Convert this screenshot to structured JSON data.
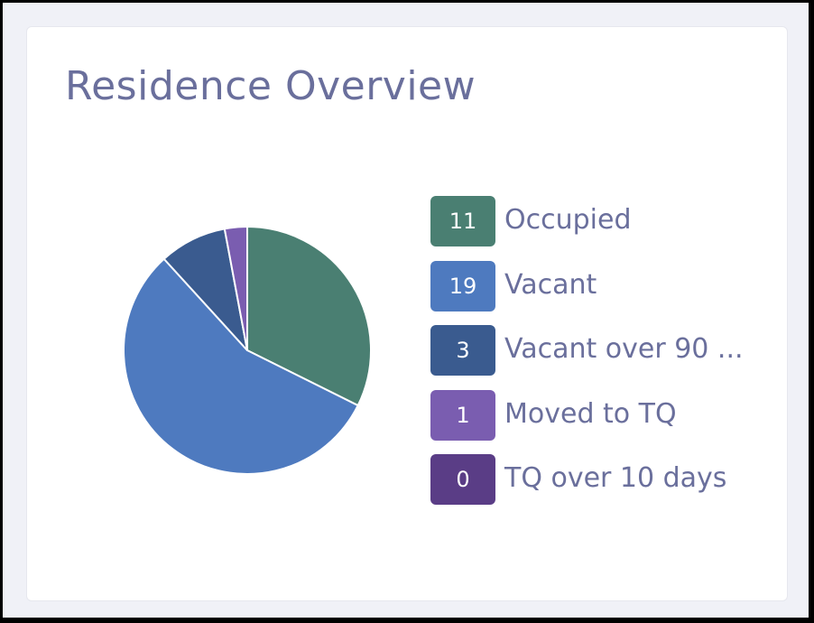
{
  "card": {
    "title": "Residence Overview"
  },
  "colors": {
    "title_text": "#6a6f9c",
    "occupied": "#4a7f72",
    "vacant": "#4e7abf",
    "vacant_over_90": "#3a5b8f",
    "moved_to_tq": "#7a5db0",
    "tq_over_10": "#5a3d86"
  },
  "chart_data": {
    "type": "pie",
    "title": "",
    "slices": [
      {
        "label": "Occupied",
        "value": 11,
        "color": "#4a7f72"
      },
      {
        "label": "Vacant",
        "value": 19,
        "color": "#4e7abf"
      },
      {
        "label": "Vacant over 90 ...",
        "value": 3,
        "color": "#3a5b8f"
      },
      {
        "label": "Moved to TQ",
        "value": 1,
        "color": "#7a5db0"
      },
      {
        "label": "TQ over 10 days",
        "value": 0,
        "color": "#5a3d86"
      }
    ],
    "legend_placement": "right",
    "start": "top",
    "direction": "clockwise"
  },
  "legend": {
    "items": [
      {
        "count": "11",
        "label": "Occupied",
        "color": "#4a7f72"
      },
      {
        "count": "19",
        "label": "Vacant",
        "color": "#4e7abf"
      },
      {
        "count": "3",
        "label": "Vacant over 90 ...",
        "color": "#3a5b8f"
      },
      {
        "count": "1",
        "label": "Moved to TQ",
        "color": "#7a5db0"
      },
      {
        "count": "0",
        "label": "TQ over 10 days",
        "color": "#5a3d86"
      }
    ]
  }
}
